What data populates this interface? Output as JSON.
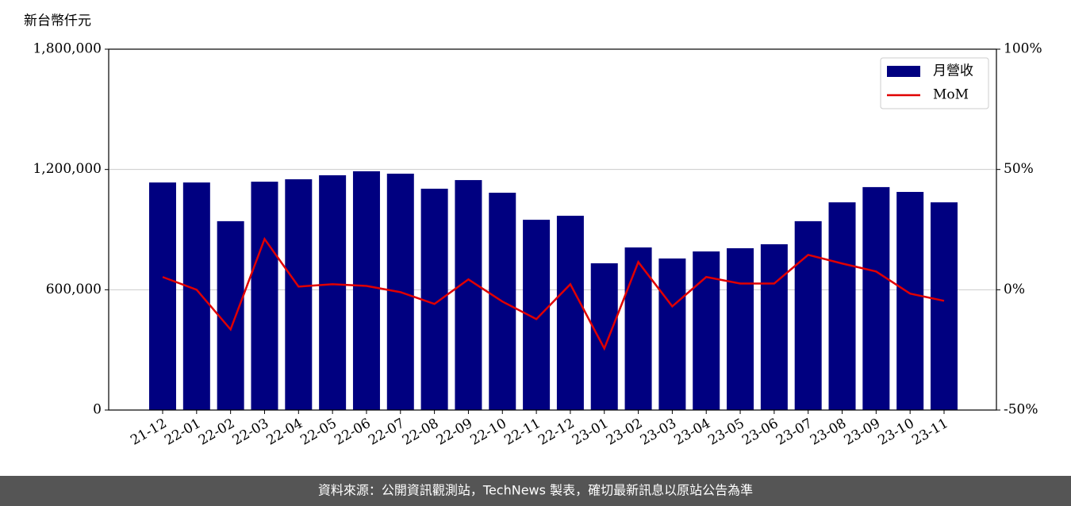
{
  "chart_data": {
    "type": "bar_line",
    "y_axis_label": "新台幣仟元",
    "categories": [
      "21-12",
      "22-01",
      "22-02",
      "22-03",
      "22-04",
      "22-05",
      "22-06",
      "22-07",
      "22-08",
      "22-09",
      "22-10",
      "22-11",
      "22-12",
      "23-01",
      "23-02",
      "23-03",
      "23-04",
      "23-05",
      "23-06",
      "23-07",
      "23-08",
      "23-09",
      "23-10",
      "23-11"
    ],
    "series": [
      {
        "name": "月營收",
        "color": "#000080",
        "type": "bar",
        "values": [
          1135000,
          1135000,
          942000,
          1139000,
          1151000,
          1171000,
          1191000,
          1179000,
          1104000,
          1147000,
          1084000,
          949000,
          969000,
          732000,
          811000,
          756000,
          791000,
          807000,
          827000,
          942000,
          1036000,
          1112000,
          1088000,
          1036000
        ]
      },
      {
        "name": "MoM",
        "color": "#e00000",
        "type": "line",
        "axis": "y2",
        "values": [
          5.3,
          0,
          -16.5,
          21.1,
          1.3,
          2.3,
          1.6,
          -1,
          -5.9,
          4.3,
          -4.9,
          -12.2,
          2.3,
          -24.4,
          11.5,
          -6.9,
          5.3,
          2.6,
          2.6,
          14.5,
          10.9,
          7.6,
          -1.6,
          -4.6
        ]
      }
    ],
    "ylim": [
      0,
      1800000
    ],
    "yticks": [
      0,
      {
        "value": 600000,
        "label": "600,000"
      },
      {
        "value": 1200000,
        "label": "1,200,000"
      },
      {
        "value": 1800000,
        "label": "1,800,000"
      }
    ],
    "y2lim": [
      -50,
      100
    ],
    "y2ticks": [
      {
        "value": -50,
        "label": "-50%"
      },
      {
        "value": 0,
        "label": "0%"
      },
      {
        "value": 50,
        "label": "50%"
      },
      {
        "value": 100,
        "label": "100%"
      }
    ],
    "grid": true,
    "legend": "upper right",
    "footer": "資料來源：公開資訊觀測站，TechNews 製表，確切最新訊息以原站公告為準"
  }
}
